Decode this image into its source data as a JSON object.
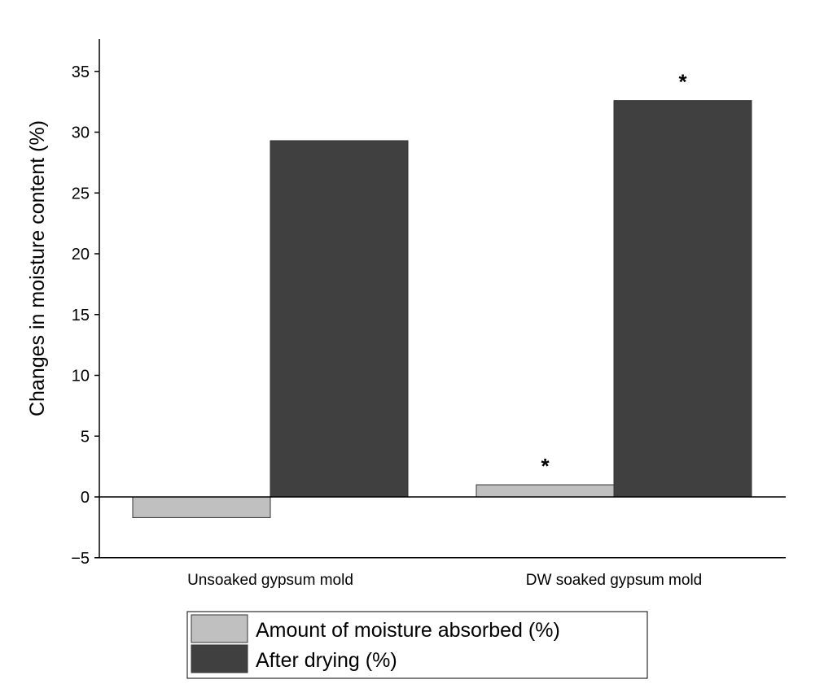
{
  "chart_data": {
    "type": "bar",
    "title": "",
    "xlabel": "",
    "ylabel": "Changes in moisture content (%)",
    "ylim": [
      -5,
      37
    ],
    "yticks": [
      -5,
      0,
      5,
      10,
      15,
      20,
      25,
      30,
      35
    ],
    "categories": [
      "Unsoaked gypsum mold",
      "DW soaked gypsum mold"
    ],
    "series": [
      {
        "name": "Amount of moisture absorbed (%)",
        "values": [
          -1.7,
          1.0
        ],
        "color": "#c0c0c0",
        "annotations": [
          "",
          "*"
        ]
      },
      {
        "name": "After drying (%)",
        "values": [
          29.3,
          32.6
        ],
        "color": "#404040",
        "annotations": [
          "",
          "*"
        ]
      }
    ],
    "grid": false,
    "legend": "bottom"
  }
}
